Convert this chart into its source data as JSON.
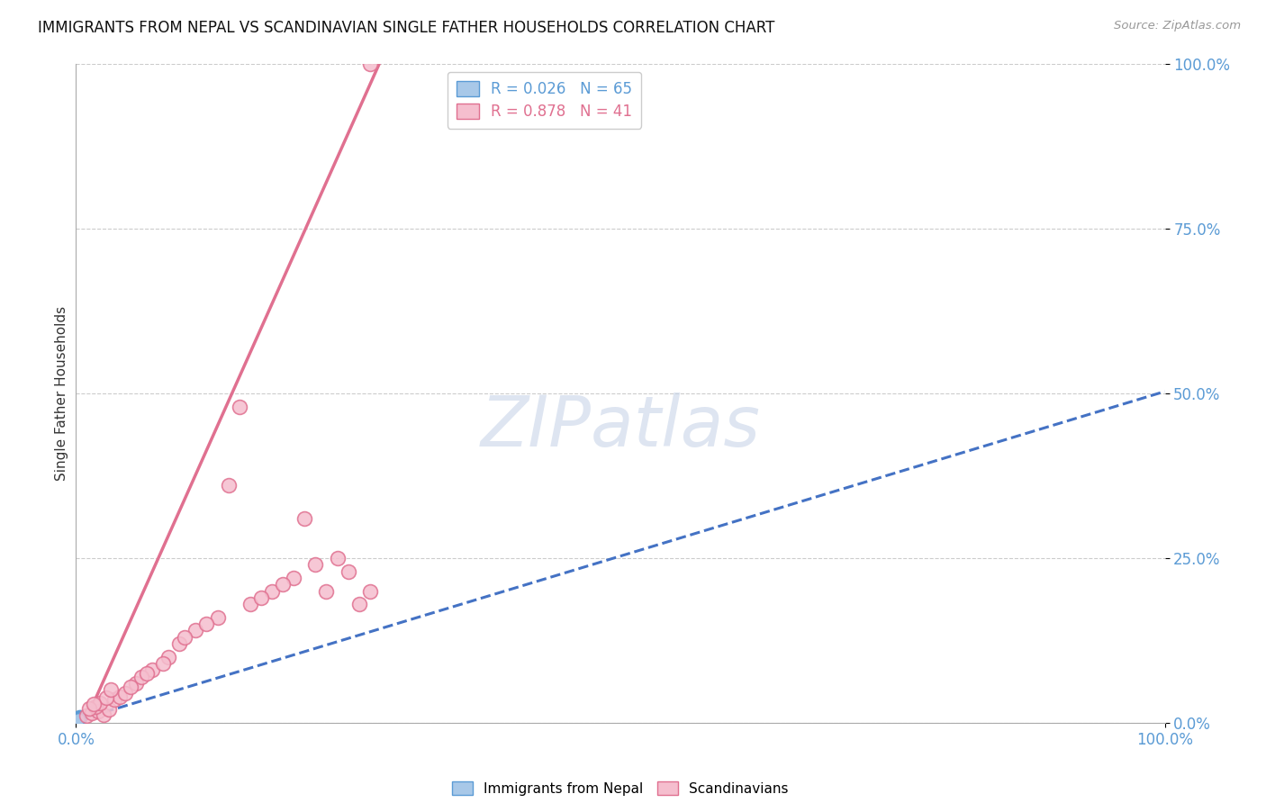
{
  "title": "IMMIGRANTS FROM NEPAL VS SCANDINAVIAN SINGLE FATHER HOUSEHOLDS CORRELATION CHART",
  "source": "Source: ZipAtlas.com",
  "ylabel": "Single Father Households",
  "ytick_labels": [
    "0.0%",
    "25.0%",
    "50.0%",
    "75.0%",
    "100.0%"
  ],
  "ytick_values": [
    0.0,
    0.25,
    0.5,
    0.75,
    1.0
  ],
  "legend1_R": "0.026",
  "legend1_N": "65",
  "legend2_R": "0.878",
  "legend2_N": "41",
  "legend1_label": "Immigrants from Nepal",
  "legend2_label": "Scandinavians",
  "blue_color": "#a8c8e8",
  "blue_edge": "#5b9bd5",
  "pink_color": "#f5bece",
  "pink_edge": "#e07090",
  "trendline_blue": "#4472c4",
  "trendline_pink": "#e07090",
  "watermark": "ZIPatlas",
  "watermark_color": "#c8d4e8",
  "nepal_x": [
    0.001,
    0.002,
    0.001,
    0.003,
    0.001,
    0.002,
    0.001,
    0.002,
    0.003,
    0.001,
    0.002,
    0.001,
    0.002,
    0.003,
    0.001,
    0.002,
    0.001,
    0.002,
    0.001,
    0.003,
    0.002,
    0.001,
    0.002,
    0.001,
    0.002,
    0.003,
    0.001,
    0.002,
    0.001,
    0.002,
    0.001,
    0.002,
    0.003,
    0.001,
    0.002,
    0.001,
    0.003,
    0.002,
    0.001,
    0.002,
    0.001,
    0.002,
    0.001,
    0.003,
    0.002,
    0.001,
    0.002,
    0.004,
    0.003,
    0.002,
    0.001,
    0.002,
    0.001,
    0.002,
    0.003,
    0.002,
    0.001,
    0.003,
    0.002,
    0.001,
    0.002,
    0.001,
    0.002,
    0.003,
    0.002
  ],
  "nepal_y": [
    0.005,
    0.007,
    0.003,
    0.008,
    0.004,
    0.006,
    0.005,
    0.007,
    0.009,
    0.003,
    0.006,
    0.004,
    0.005,
    0.007,
    0.003,
    0.006,
    0.004,
    0.007,
    0.003,
    0.008,
    0.005,
    0.004,
    0.006,
    0.003,
    0.005,
    0.007,
    0.004,
    0.006,
    0.003,
    0.005,
    0.004,
    0.006,
    0.008,
    0.003,
    0.005,
    0.004,
    0.007,
    0.005,
    0.003,
    0.006,
    0.004,
    0.005,
    0.003,
    0.007,
    0.005,
    0.004,
    0.006,
    0.009,
    0.007,
    0.005,
    0.003,
    0.005,
    0.004,
    0.006,
    0.008,
    0.005,
    0.003,
    0.007,
    0.005,
    0.004,
    0.006,
    0.003,
    0.005,
    0.007,
    0.005
  ],
  "scandi_x": [
    0.01,
    0.015,
    0.02,
    0.025,
    0.03,
    0.018,
    0.022,
    0.035,
    0.012,
    0.04,
    0.028,
    0.016,
    0.045,
    0.032,
    0.055,
    0.07,
    0.085,
    0.095,
    0.11,
    0.13,
    0.15,
    0.08,
    0.06,
    0.1,
    0.12,
    0.14,
    0.16,
    0.18,
    0.2,
    0.22,
    0.24,
    0.17,
    0.19,
    0.21,
    0.25,
    0.26,
    0.27,
    0.23,
    0.05,
    0.065,
    0.27
  ],
  "scandi_y": [
    0.01,
    0.015,
    0.018,
    0.012,
    0.02,
    0.025,
    0.03,
    0.035,
    0.022,
    0.04,
    0.038,
    0.028,
    0.045,
    0.05,
    0.06,
    0.08,
    0.1,
    0.12,
    0.14,
    0.16,
    0.48,
    0.09,
    0.07,
    0.13,
    0.15,
    0.36,
    0.18,
    0.2,
    0.22,
    0.24,
    0.25,
    0.19,
    0.21,
    0.31,
    0.23,
    0.18,
    0.2,
    0.2,
    0.055,
    0.075,
    1.0
  ],
  "trendline_blue_slope": 0.5,
  "trendline_blue_intercept": 0.003,
  "trendline_pink_slope": 3.7,
  "trendline_pink_intercept": -0.03
}
